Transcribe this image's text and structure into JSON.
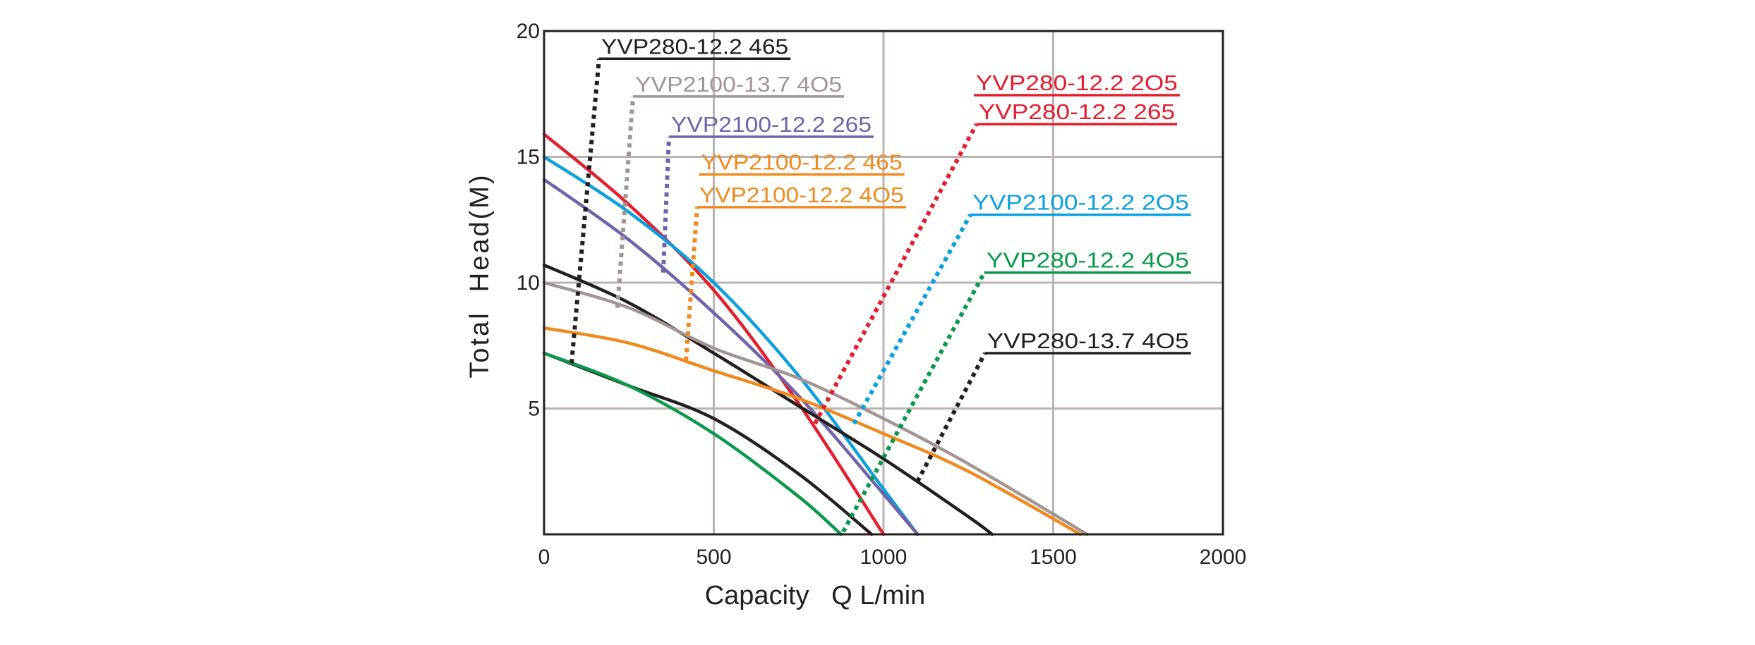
{
  "chart_data": {
    "type": "line",
    "title": "",
    "xlabel": "Capacity   Q L/min",
    "ylabel": "Total  Head(M)",
    "xlim": [
      0,
      2000
    ],
    "ylim": [
      0,
      20
    ],
    "xticks": [
      0,
      500,
      1000,
      1500,
      2000
    ],
    "xtick_labels": [
      "0",
      "500",
      "1000",
      "1500",
      "2000"
    ],
    "yticks": [
      5,
      10,
      15,
      20
    ],
    "ytick_labels": [
      "5",
      "10",
      "15",
      "20"
    ],
    "grid": true,
    "legend": "annotations with leader lines",
    "series": [
      {
        "name": "YVP280-12.2 2O5 / YVP280-12.2 265",
        "color": "#e31e2d",
        "x": [
          0,
          250,
          500,
          750,
          1000
        ],
        "y": [
          15.9,
          13.1,
          9.7,
          5.2,
          0
        ]
      },
      {
        "name": "YVP2100-12.2 2O5",
        "color": "#0aa0e0",
        "x": [
          0,
          250,
          500,
          750,
          1000,
          1100
        ],
        "y": [
          15.0,
          12.8,
          10.0,
          6.3,
          1.8,
          0
        ]
      },
      {
        "name": "YVP2100-12.2 265",
        "color": "#7262aa",
        "x": [
          0,
          250,
          500,
          750,
          1000,
          1100
        ],
        "y": [
          14.1,
          11.7,
          8.8,
          5.5,
          1.6,
          0
        ]
      },
      {
        "name": "YVP280-12.2 465",
        "color": "#231f20",
        "x": [
          0,
          250,
          500,
          750,
          1000,
          1250,
          1320
        ],
        "y": [
          10.7,
          9.2,
          7.2,
          5.1,
          3.0,
          0.7,
          0
        ]
      },
      {
        "name": "YVP2100-13.7 4O5",
        "color": "#a39592",
        "x": [
          0,
          250,
          500,
          750,
          1000,
          1250,
          1600
        ],
        "y": [
          10.0,
          9.0,
          7.4,
          6.2,
          4.6,
          2.8,
          0
        ]
      },
      {
        "name": "YVP2100-12.2 465 / YVP2100-12.2 4O5",
        "color": "#f08a1e",
        "x": [
          0,
          250,
          500,
          750,
          1000,
          1250,
          1580
        ],
        "y": [
          8.2,
          7.6,
          6.5,
          5.4,
          4.0,
          2.5,
          0
        ]
      },
      {
        "name": "YVP280-13.7 4O5",
        "color": "#231f20",
        "x": [
          0,
          250,
          500,
          750,
          965
        ],
        "y": [
          7.2,
          5.9,
          4.6,
          2.4,
          0
        ]
      },
      {
        "name": "YVP280-12.2 4O5",
        "color": "#0a9a4a",
        "x": [
          0,
          250,
          500,
          750,
          875
        ],
        "y": [
          7.2,
          5.9,
          4.0,
          1.5,
          0
        ]
      }
    ],
    "annotations": [
      {
        "text": "YVP280-12.2 465",
        "color": "#231f20",
        "label_x": 162,
        "label_y": 18.9,
        "label_end_x": 726,
        "target_x": 81,
        "target_y": 6.8
      },
      {
        "text": "YVP2100-13.7 4O5",
        "color": "#a39592",
        "label_x": 262,
        "label_y": 17.4,
        "label_end_x": 884,
        "target_x": 216,
        "target_y": 9.0
      },
      {
        "text": "YVP2100-12.2 265",
        "color": "#7262aa",
        "label_x": 368,
        "label_y": 15.8,
        "label_end_x": 971,
        "target_x": 351,
        "target_y": 10.4
      },
      {
        "text": "YVP2100-12.2 465",
        "color": "#f08a1e",
        "label_x": 457,
        "label_y": 14.3,
        "label_end_x": 1062,
        "target_x": null,
        "target_y": null
      },
      {
        "text": "YVP2100-12.2 4O5",
        "color": "#f08a1e",
        "label_x": 451,
        "label_y": 13.0,
        "label_end_x": 1066,
        "target_x": 418,
        "target_y": 6.9
      },
      {
        "text": "YVP280-12.2 2O5",
        "color": "#e31e2d",
        "label_x": 1266,
        "label_y": 17.45,
        "label_end_x": 1873,
        "target_x": null,
        "target_y": null
      },
      {
        "text": "YVP280-12.2 265",
        "color": "#e31e2d",
        "label_x": 1274,
        "label_y": 16.3,
        "label_end_x": 1865,
        "target_x": 798,
        "target_y": 4.4
      },
      {
        "text": "YVP2100-12.2 2O5",
        "color": "#0aa0e0",
        "label_x": 1256,
        "label_y": 12.7,
        "label_end_x": 1906,
        "target_x": 913,
        "target_y": 4.4
      },
      {
        "text": "YVP280-12.2 4O5",
        "color": "#0a9a4a",
        "label_x": 1297,
        "label_y": 10.4,
        "label_end_x": 1906,
        "target_x": 881,
        "target_y": 0.1
      },
      {
        "text": "YVP280-13.7 4O5",
        "color": "#231f20",
        "label_x": 1299,
        "label_y": 7.2,
        "label_end_x": 1906,
        "target_x": 1100,
        "target_y": 2.1
      }
    ]
  },
  "colors": {
    "axis": "#231f20",
    "grid": "#bcb3b3"
  }
}
